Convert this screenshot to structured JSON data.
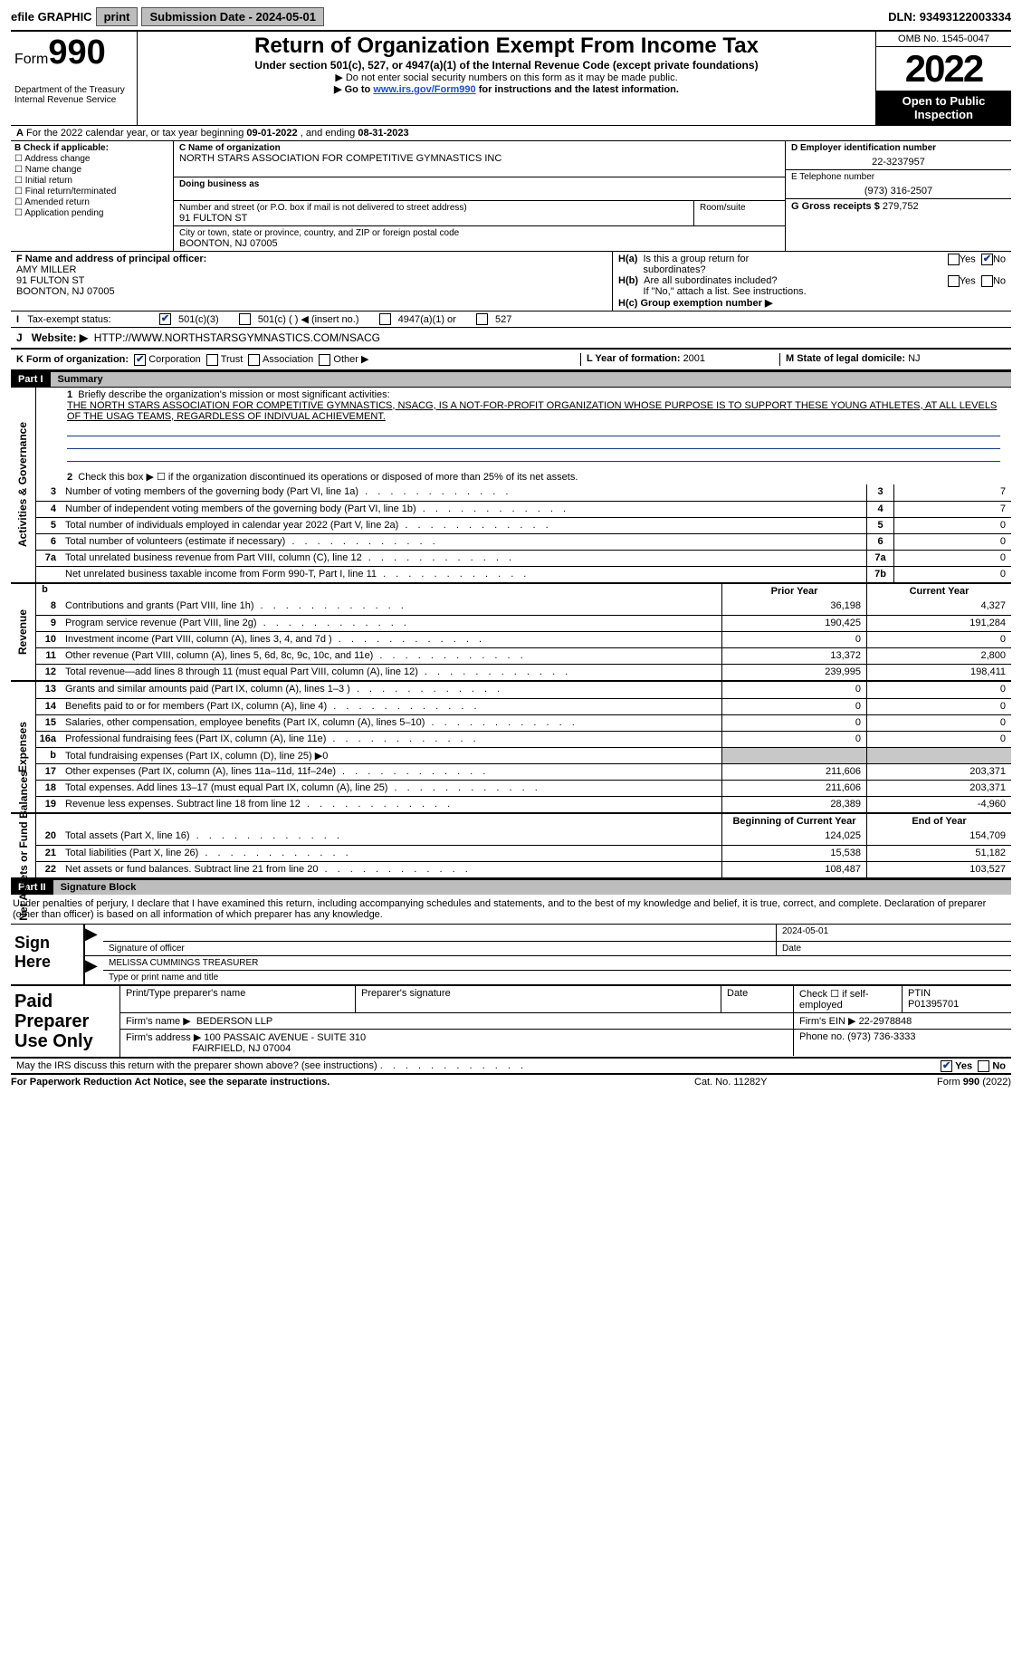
{
  "topbar": {
    "efile": "efile GRAPHIC",
    "print": "print",
    "subdate_label": "Submission Date - ",
    "subdate": "2024-05-01",
    "dln_label": "DLN: ",
    "dln": "93493122003334"
  },
  "header": {
    "form_prefix": "Form",
    "form_number": "990",
    "title": "Return of Organization Exempt From Income Tax",
    "subtitle": "Under section 501(c), 527, or 4947(a)(1) of the Internal Revenue Code (except private foundations)",
    "note1": "▶ Do not enter social security numbers on this form as it may be made public.",
    "note2_pre": "▶ Go to ",
    "note2_link": "www.irs.gov/Form990",
    "note2_post": " for instructions and the latest information.",
    "dept": "Department of the Treasury\nInternal Revenue Service",
    "omb": "OMB No. 1545-0047",
    "year": "2022",
    "open": "Open to Public Inspection"
  },
  "lineA": {
    "text_pre": "For the 2022 calendar year, or tax year beginning ",
    "begin": "09-01-2022",
    "mid": " , and ending ",
    "end": "08-31-2023"
  },
  "boxB": {
    "label": "B Check if applicable:",
    "items": [
      "Address change",
      "Name change",
      "Initial return",
      "Final return/terminated",
      "Amended return",
      "Application pending"
    ]
  },
  "boxC": {
    "name_label": "C Name of organization",
    "name": "NORTH STARS ASSOCIATION FOR COMPETITIVE GYMNASTICS INC",
    "dba_label": "Doing business as",
    "dba": "",
    "street_label": "Number and street (or P.O. box if mail is not delivered to street address)",
    "street": "91 FULTON ST",
    "room_label": "Room/suite",
    "city_label": "City or town, state or province, country, and ZIP or foreign postal code",
    "city": "BOONTON, NJ 07005"
  },
  "boxD": {
    "ein_label": "D Employer identification number",
    "ein": "22-3237957",
    "phone_label": "E Telephone number",
    "phone": "(973) 316-2507",
    "gross_label": "G Gross receipts $ ",
    "gross": "279,752"
  },
  "boxF": {
    "label": "F Name and address of principal officer:",
    "name": "AMY MILLER",
    "street": "91 FULTON ST",
    "city": "BOONTON, NJ  07005"
  },
  "boxH": {
    "ha_label": "H(a)  Is this a group return for subordinates?",
    "hb_label": "H(b)  Are all subordinates included?",
    "hb_note": "If \"No,\" attach a list. See instructions.",
    "hc_label": "H(c)  Group exemption number ▶",
    "yes": "Yes",
    "no": "No"
  },
  "taxI": {
    "label": "Tax-exempt status:",
    "opt1": "501(c)(3)",
    "opt2": "501(c) (  ) ◀ (insert no.)",
    "opt3": "4947(a)(1) or",
    "opt4": "527"
  },
  "lineJ": {
    "label": "Website: ▶",
    "value": "HTTP://WWW.NORTHSTARSGYMNASTICS.COM/NSACG"
  },
  "lineK": {
    "label": "K Form of organization:",
    "corp": "Corporation",
    "trust": "Trust",
    "assoc": "Association",
    "other": "Other ▶",
    "L_label": "L Year of formation: ",
    "L_val": "2001",
    "M_label": "M State of legal domicile: ",
    "M_val": "NJ"
  },
  "part1": {
    "hdr": "Part I",
    "title": "Summary",
    "mission_label": "Briefly describe the organization's mission or most significant activities:",
    "mission": "THE NORTH STARS ASSOCIATION FOR COMPETITIVE GYMNASTICS, NSACG, IS A NOT-FOR-PROFIT ORGANIZATION WHOSE PURPOSE IS TO SUPPORT THESE YOUNG ATHLETES, AT ALL LEVELS OF THE USAG TEAMS, REGARDLESS OF INDIVUAL ACHIEVEMENT.",
    "line2": "Check this box ▶ ☐ if the organization discontinued its operations or disposed of more than 25% of its net assets.",
    "vtab_gov": "Activities & Governance",
    "vtab_rev": "Revenue",
    "vtab_exp": "Expenses",
    "vtab_net": "Net Assets or Fund Balances",
    "prior": "Prior Year",
    "current": "Current Year",
    "begin": "Beginning of Current Year",
    "end": "End of Year"
  },
  "govLines": [
    {
      "n": "3",
      "t": "Number of voting members of the governing body (Part VI, line 1a)",
      "b": "3",
      "v": "7"
    },
    {
      "n": "4",
      "t": "Number of independent voting members of the governing body (Part VI, line 1b)",
      "b": "4",
      "v": "7"
    },
    {
      "n": "5",
      "t": "Total number of individuals employed in calendar year 2022 (Part V, line 2a)",
      "b": "5",
      "v": "0"
    },
    {
      "n": "6",
      "t": "Total number of volunteers (estimate if necessary)",
      "b": "6",
      "v": "0"
    },
    {
      "n": "7a",
      "t": "Total unrelated business revenue from Part VIII, column (C), line 12",
      "b": "7a",
      "v": "0"
    },
    {
      "n": "",
      "t": "Net unrelated business taxable income from Form 990-T, Part I, line 11",
      "b": "7b",
      "v": "0"
    }
  ],
  "revLines": [
    {
      "n": "8",
      "t": "Contributions and grants (Part VIII, line 1h)",
      "p": "36,198",
      "c": "4,327"
    },
    {
      "n": "9",
      "t": "Program service revenue (Part VIII, line 2g)",
      "p": "190,425",
      "c": "191,284"
    },
    {
      "n": "10",
      "t": "Investment income (Part VIII, column (A), lines 3, 4, and 7d )",
      "p": "0",
      "c": "0"
    },
    {
      "n": "11",
      "t": "Other revenue (Part VIII, column (A), lines 5, 6d, 8c, 9c, 10c, and 11e)",
      "p": "13,372",
      "c": "2,800"
    },
    {
      "n": "12",
      "t": "Total revenue—add lines 8 through 11 (must equal Part VIII, column (A), line 12)",
      "p": "239,995",
      "c": "198,411"
    }
  ],
  "expLines": [
    {
      "n": "13",
      "t": "Grants and similar amounts paid (Part IX, column (A), lines 1–3 )",
      "p": "0",
      "c": "0"
    },
    {
      "n": "14",
      "t": "Benefits paid to or for members (Part IX, column (A), line 4)",
      "p": "0",
      "c": "0"
    },
    {
      "n": "15",
      "t": "Salaries, other compensation, employee benefits (Part IX, column (A), lines 5–10)",
      "p": "0",
      "c": "0"
    },
    {
      "n": "16a",
      "t": "Professional fundraising fees (Part IX, column (A), line 11e)",
      "p": "0",
      "c": "0"
    },
    {
      "n": "b",
      "t": "Total fundraising expenses (Part IX, column (D), line 25) ▶0",
      "p": "",
      "c": "",
      "shade": true
    },
    {
      "n": "17",
      "t": "Other expenses (Part IX, column (A), lines 11a–11d, 11f–24e)",
      "p": "211,606",
      "c": "203,371"
    },
    {
      "n": "18",
      "t": "Total expenses. Add lines 13–17 (must equal Part IX, column (A), line 25)",
      "p": "211,606",
      "c": "203,371"
    },
    {
      "n": "19",
      "t": "Revenue less expenses. Subtract line 18 from line 12",
      "p": "28,389",
      "c": "-4,960"
    }
  ],
  "netLines": [
    {
      "n": "20",
      "t": "Total assets (Part X, line 16)",
      "p": "124,025",
      "c": "154,709"
    },
    {
      "n": "21",
      "t": "Total liabilities (Part X, line 26)",
      "p": "15,538",
      "c": "51,182"
    },
    {
      "n": "22",
      "t": "Net assets or fund balances. Subtract line 21 from line 20",
      "p": "108,487",
      "c": "103,527"
    }
  ],
  "part2": {
    "hdr": "Part II",
    "title": "Signature Block",
    "intro": "Under penalties of perjury, I declare that I have examined this return, including accompanying schedules and statements, and to the best of my knowledge and belief, it is true, correct, and complete. Declaration of preparer (other than officer) is based on all information of which preparer has any knowledge.",
    "sign_here": "Sign Here",
    "sig_officer": "Signature of officer",
    "sig_date": "2024-05-01",
    "date_label": "Date",
    "officer_name": "MELISSA CUMMINGS  TREASURER",
    "officer_label": "Type or print name and title",
    "paid_label": "Paid Preparer Use Only",
    "prep_name_label": "Print/Type preparer's name",
    "prep_sig_label": "Preparer's signature",
    "prep_date_label": "Date",
    "prep_check": "Check ☐ if self-employed",
    "ptin_label": "PTIN",
    "ptin": "P01395701",
    "firm_name_label": "Firm's name      ▶",
    "firm_name": "BEDERSON LLP",
    "firm_ein_label": "Firm's EIN ▶",
    "firm_ein": "22-2978848",
    "firm_addr_label": "Firm's address ▶",
    "firm_addr1": "100 PASSAIC AVENUE - SUITE 310",
    "firm_addr2": "FAIRFIELD, NJ  07004",
    "firm_phone_label": "Phone no. ",
    "firm_phone": "(973) 736-3333",
    "may_irs": "May the IRS discuss this return with the preparer shown above? (see instructions)"
  },
  "footer": {
    "left": "For Paperwork Reduction Act Notice, see the separate instructions.",
    "mid": "Cat. No. 11282Y",
    "right": "Form 990 (2022)"
  }
}
